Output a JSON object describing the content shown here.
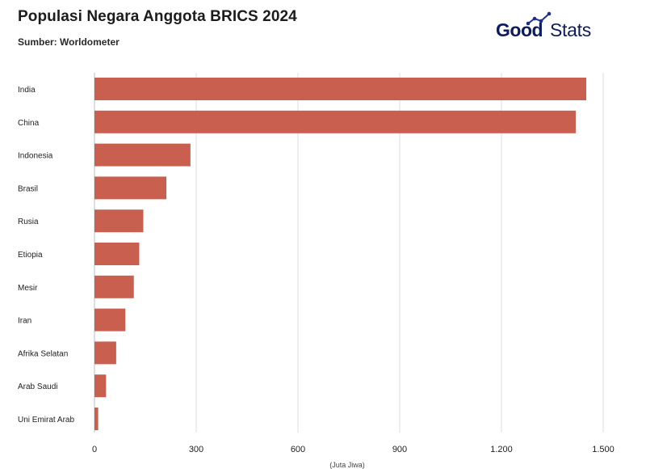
{
  "header": {
    "title": "Populasi Negara Anggota BRICS 2024",
    "source": "Sumber: Worldometer"
  },
  "logo": {
    "bold_part": "Good",
    "light_part": "Stats",
    "color": "#0d1c5e",
    "accent": "#1e2f8a"
  },
  "chart_data": {
    "type": "bar",
    "orientation": "horizontal",
    "categories": [
      "India",
      "China",
      "Indonesia",
      "Brasil",
      "Rusia",
      "Etiopia",
      "Mesir",
      "Iran",
      "Afrika Selatan",
      "Arab Saudi",
      "Uni Emirat Arab"
    ],
    "values": [
      1450,
      1419,
      283,
      212,
      144,
      132,
      116,
      91,
      64,
      34,
      11
    ],
    "xlim": [
      0,
      1500
    ],
    "xticks": [
      0,
      300,
      600,
      900,
      1200,
      1500
    ],
    "xtick_labels": [
      "0",
      "300",
      "600",
      "900",
      "1.200",
      "1.500"
    ],
    "xlabel": "(Juta Jiwa)",
    "bar_color": "#c9604f",
    "grid": true
  }
}
